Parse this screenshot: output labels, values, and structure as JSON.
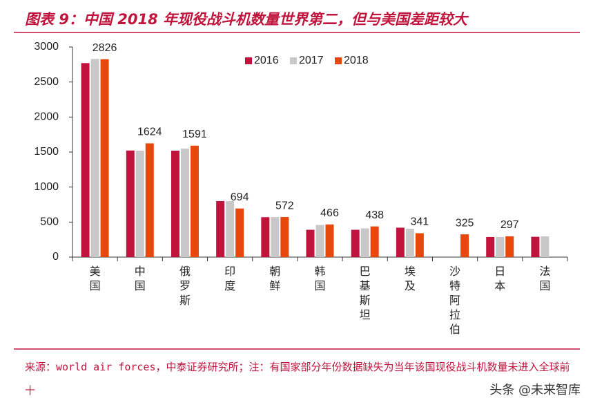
{
  "chart_data": {
    "type": "bar",
    "title": "图表 9：中国 2018 年现役战斗机数量世界第二，但与美国差距较大",
    "categories": [
      "美国",
      "中国",
      "俄罗斯",
      "印度",
      "朝鲜",
      "韩国",
      "巴基斯坦",
      "埃及",
      "沙特阿拉伯",
      "日本",
      "法国"
    ],
    "series": [
      {
        "name": "2016",
        "color": "#c0143c",
        "values": [
          2770,
          1522,
          1520,
          800,
          570,
          390,
          390,
          420,
          null,
          287,
          290
        ]
      },
      {
        "name": "2017",
        "color": "#c8c8c8",
        "values": [
          2830,
          1520,
          1550,
          800,
          572,
          460,
          410,
          405,
          null,
          287,
          296
        ]
      },
      {
        "name": "2018",
        "color": "#e8480c",
        "values": [
          2826,
          1624,
          1591,
          694,
          572,
          466,
          438,
          341,
          325,
          297,
          null
        ],
        "data_labels": true
      }
    ],
    "ylim": [
      0,
      3000
    ],
    "yticks": [
      0,
      500,
      1000,
      1500,
      2000,
      2500,
      3000
    ],
    "grid": false,
    "legend": "top",
    "source": "来源：world air forces，中泰证券研究所；注：有国家部分年份数据缺失为当年该国现役战斗机数量未进入全球前十",
    "watermark": "头条 @未来智库"
  }
}
